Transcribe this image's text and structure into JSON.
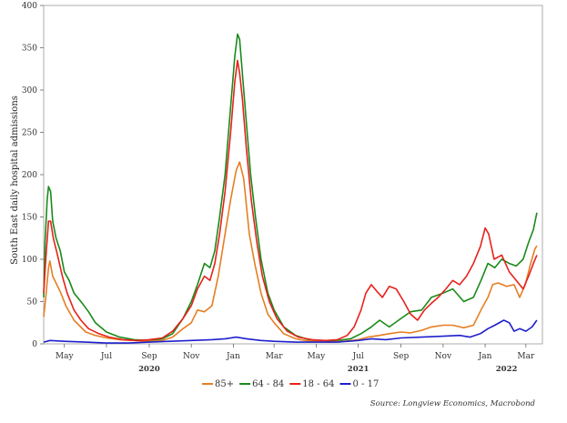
{
  "chart_data": {
    "type": "line",
    "title": "",
    "ylabel": "South East daily hospital admissions",
    "xlabel": "",
    "ylim": [
      0,
      400
    ],
    "xlim": [
      "2020-04-01",
      "2022-03-25"
    ],
    "yticks": [
      0,
      50,
      100,
      150,
      200,
      250,
      300,
      350,
      400
    ],
    "xticks": [
      {
        "date": "2020-05-01",
        "label": "May"
      },
      {
        "date": "2020-07-01",
        "label": "Jul"
      },
      {
        "date": "2020-09-01",
        "label": "Sep"
      },
      {
        "date": "2020-11-01",
        "label": "Nov"
      },
      {
        "date": "2021-01-01",
        "label": "Jan"
      },
      {
        "date": "2021-03-01",
        "label": "Mar"
      },
      {
        "date": "2021-05-01",
        "label": "May"
      },
      {
        "date": "2021-07-01",
        "label": "Jul"
      },
      {
        "date": "2021-09-01",
        "label": "Sep"
      },
      {
        "date": "2021-11-01",
        "label": "Nov"
      },
      {
        "date": "2022-01-01",
        "label": "Jan"
      },
      {
        "date": "2022-03-01",
        "label": "Mar"
      }
    ],
    "year_labels": [
      {
        "date": "2020-09-01",
        "label": "2020"
      },
      {
        "date": "2021-07-01",
        "label": "2021"
      },
      {
        "date": "2022-02-01",
        "label": "2022"
      }
    ],
    "grid": false,
    "legend": "bottom",
    "source": "Source: Longview Economics, Macrobond",
    "series": [
      {
        "name": "85+",
        "color": "#e67e22",
        "points": [
          [
            "2020-04-01",
            32
          ],
          [
            "2020-04-04",
            55
          ],
          [
            "2020-04-08",
            90
          ],
          [
            "2020-04-10",
            98
          ],
          [
            "2020-04-14",
            80
          ],
          [
            "2020-04-20",
            70
          ],
          [
            "2020-04-26",
            60
          ],
          [
            "2020-05-03",
            45
          ],
          [
            "2020-05-15",
            28
          ],
          [
            "2020-06-01",
            14
          ],
          [
            "2020-06-15",
            10
          ],
          [
            "2020-07-01",
            7
          ],
          [
            "2020-07-20",
            5
          ],
          [
            "2020-08-10",
            4
          ],
          [
            "2020-09-01",
            3
          ],
          [
            "2020-09-20",
            4
          ],
          [
            "2020-10-05",
            8
          ],
          [
            "2020-10-20",
            18
          ],
          [
            "2020-11-01",
            25
          ],
          [
            "2020-11-10",
            40
          ],
          [
            "2020-11-20",
            38
          ],
          [
            "2020-12-01",
            45
          ],
          [
            "2020-12-10",
            80
          ],
          [
            "2020-12-20",
            130
          ],
          [
            "2020-12-28",
            170
          ],
          [
            "2021-01-05",
            205
          ],
          [
            "2021-01-10",
            215
          ],
          [
            "2021-01-16",
            195
          ],
          [
            "2021-01-24",
            130
          ],
          [
            "2021-02-01",
            95
          ],
          [
            "2021-02-10",
            60
          ],
          [
            "2021-02-20",
            35
          ],
          [
            "2021-03-01",
            25
          ],
          [
            "2021-03-15",
            12
          ],
          [
            "2021-04-01",
            6
          ],
          [
            "2021-04-15",
            4
          ],
          [
            "2021-05-01",
            3
          ],
          [
            "2021-05-20",
            2
          ],
          [
            "2021-06-10",
            3
          ],
          [
            "2021-07-01",
            5
          ],
          [
            "2021-07-15",
            8
          ],
          [
            "2021-08-01",
            10
          ],
          [
            "2021-08-15",
            12
          ],
          [
            "2021-09-01",
            14
          ],
          [
            "2021-09-15",
            13
          ],
          [
            "2021-10-01",
            16
          ],
          [
            "2021-10-15",
            20
          ],
          [
            "2021-11-01",
            22
          ],
          [
            "2021-11-15",
            22
          ],
          [
            "2021-12-01",
            19
          ],
          [
            "2021-12-15",
            22
          ],
          [
            "2021-12-26",
            40
          ],
          [
            "2022-01-05",
            55
          ],
          [
            "2022-01-12",
            70
          ],
          [
            "2022-01-20",
            72
          ],
          [
            "2022-02-01",
            68
          ],
          [
            "2022-02-12",
            70
          ],
          [
            "2022-02-20",
            55
          ],
          [
            "2022-02-28",
            70
          ],
          [
            "2022-03-08",
            95
          ],
          [
            "2022-03-14",
            112
          ],
          [
            "2022-03-17",
            116
          ]
        ]
      },
      {
        "name": "64 - 84",
        "color": "#1a8a1a",
        "points": [
          [
            "2020-04-01",
            55
          ],
          [
            "2020-04-03",
            120
          ],
          [
            "2020-04-06",
            170
          ],
          [
            "2020-04-08",
            186
          ],
          [
            "2020-04-11",
            180
          ],
          [
            "2020-04-14",
            145
          ],
          [
            "2020-04-19",
            125
          ],
          [
            "2020-04-25",
            110
          ],
          [
            "2020-05-01",
            85
          ],
          [
            "2020-05-08",
            75
          ],
          [
            "2020-05-15",
            60
          ],
          [
            "2020-05-25",
            50
          ],
          [
            "2020-06-05",
            38
          ],
          [
            "2020-06-15",
            25
          ],
          [
            "2020-07-01",
            14
          ],
          [
            "2020-07-20",
            8
          ],
          [
            "2020-08-10",
            5
          ],
          [
            "2020-09-01",
            4
          ],
          [
            "2020-09-20",
            6
          ],
          [
            "2020-10-05",
            12
          ],
          [
            "2020-10-20",
            30
          ],
          [
            "2020-11-01",
            50
          ],
          [
            "2020-11-10",
            70
          ],
          [
            "2020-11-20",
            95
          ],
          [
            "2020-11-28",
            90
          ],
          [
            "2020-12-05",
            110
          ],
          [
            "2020-12-12",
            150
          ],
          [
            "2020-12-20",
            200
          ],
          [
            "2020-12-28",
            280
          ],
          [
            "2021-01-03",
            340
          ],
          [
            "2021-01-07",
            366
          ],
          [
            "2021-01-10",
            360
          ],
          [
            "2021-01-14",
            320
          ],
          [
            "2021-01-20",
            260
          ],
          [
            "2021-01-26",
            200
          ],
          [
            "2021-02-02",
            150
          ],
          [
            "2021-02-10",
            100
          ],
          [
            "2021-02-20",
            60
          ],
          [
            "2021-03-01",
            40
          ],
          [
            "2021-03-15",
            20
          ],
          [
            "2021-04-01",
            10
          ],
          [
            "2021-04-20",
            5
          ],
          [
            "2021-05-10",
            3
          ],
          [
            "2021-06-01",
            4
          ],
          [
            "2021-06-20",
            6
          ],
          [
            "2021-07-05",
            12
          ],
          [
            "2021-07-20",
            20
          ],
          [
            "2021-08-01",
            28
          ],
          [
            "2021-08-15",
            20
          ],
          [
            "2021-09-01",
            30
          ],
          [
            "2021-09-15",
            38
          ],
          [
            "2021-10-01",
            40
          ],
          [
            "2021-10-15",
            55
          ],
          [
            "2021-11-01",
            60
          ],
          [
            "2021-11-15",
            65
          ],
          [
            "2021-12-01",
            50
          ],
          [
            "2021-12-15",
            55
          ],
          [
            "2021-12-26",
            75
          ],
          [
            "2022-01-05",
            95
          ],
          [
            "2022-01-15",
            90
          ],
          [
            "2022-01-25",
            100
          ],
          [
            "2022-02-05",
            95
          ],
          [
            "2022-02-15",
            92
          ],
          [
            "2022-02-25",
            100
          ],
          [
            "2022-03-05",
            120
          ],
          [
            "2022-03-12",
            135
          ],
          [
            "2022-03-17",
            155
          ]
        ]
      },
      {
        "name": "18 - 64",
        "color": "#e8211b",
        "points": [
          [
            "2020-04-01",
            60
          ],
          [
            "2020-04-04",
            100
          ],
          [
            "2020-04-08",
            145
          ],
          [
            "2020-04-11",
            145
          ],
          [
            "2020-04-15",
            125
          ],
          [
            "2020-04-21",
            105
          ],
          [
            "2020-04-28",
            80
          ],
          [
            "2020-05-05",
            60
          ],
          [
            "2020-05-15",
            40
          ],
          [
            "2020-05-25",
            28
          ],
          [
            "2020-06-05",
            18
          ],
          [
            "2020-06-20",
            12
          ],
          [
            "2020-07-05",
            8
          ],
          [
            "2020-07-25",
            5
          ],
          [
            "2020-08-15",
            4
          ],
          [
            "2020-09-01",
            5
          ],
          [
            "2020-09-20",
            7
          ],
          [
            "2020-10-05",
            15
          ],
          [
            "2020-10-20",
            30
          ],
          [
            "2020-11-01",
            45
          ],
          [
            "2020-11-10",
            65
          ],
          [
            "2020-11-20",
            80
          ],
          [
            "2020-11-28",
            75
          ],
          [
            "2020-12-05",
            95
          ],
          [
            "2020-12-12",
            130
          ],
          [
            "2020-12-20",
            180
          ],
          [
            "2020-12-28",
            250
          ],
          [
            "2021-01-03",
            310
          ],
          [
            "2021-01-07",
            335
          ],
          [
            "2021-01-10",
            320
          ],
          [
            "2021-01-14",
            290
          ],
          [
            "2021-01-20",
            230
          ],
          [
            "2021-01-27",
            170
          ],
          [
            "2021-02-04",
            120
          ],
          [
            "2021-02-12",
            80
          ],
          [
            "2021-02-22",
            50
          ],
          [
            "2021-03-05",
            30
          ],
          [
            "2021-03-20",
            15
          ],
          [
            "2021-04-05",
            8
          ],
          [
            "2021-04-25",
            5
          ],
          [
            "2021-05-15",
            4
          ],
          [
            "2021-06-01",
            5
          ],
          [
            "2021-06-15",
            10
          ],
          [
            "2021-06-25",
            20
          ],
          [
            "2021-07-05",
            40
          ],
          [
            "2021-07-12",
            60
          ],
          [
            "2021-07-20",
            70
          ],
          [
            "2021-07-28",
            62
          ],
          [
            "2021-08-05",
            55
          ],
          [
            "2021-08-15",
            68
          ],
          [
            "2021-08-25",
            65
          ],
          [
            "2021-09-05",
            50
          ],
          [
            "2021-09-15",
            35
          ],
          [
            "2021-09-25",
            28
          ],
          [
            "2021-10-05",
            40
          ],
          [
            "2021-10-15",
            48
          ],
          [
            "2021-10-25",
            55
          ],
          [
            "2021-11-05",
            65
          ],
          [
            "2021-11-15",
            75
          ],
          [
            "2021-11-25",
            70
          ],
          [
            "2021-12-05",
            80
          ],
          [
            "2021-12-15",
            95
          ],
          [
            "2021-12-25",
            115
          ],
          [
            "2022-01-01",
            137
          ],
          [
            "2022-01-06",
            130
          ],
          [
            "2022-01-14",
            100
          ],
          [
            "2022-01-25",
            105
          ],
          [
            "2022-02-05",
            85
          ],
          [
            "2022-02-15",
            75
          ],
          [
            "2022-02-25",
            65
          ],
          [
            "2022-03-05",
            80
          ],
          [
            "2022-03-12",
            95
          ],
          [
            "2022-03-17",
            105
          ]
        ]
      },
      {
        "name": "0 - 17",
        "color": "#1f1fcc",
        "points": [
          [
            "2020-04-01",
            2
          ],
          [
            "2020-04-10",
            4
          ],
          [
            "2020-05-01",
            3
          ],
          [
            "2020-06-01",
            2
          ],
          [
            "2020-07-01",
            1
          ],
          [
            "2020-08-01",
            1
          ],
          [
            "2020-09-01",
            2
          ],
          [
            "2020-10-01",
            3
          ],
          [
            "2020-11-01",
            4
          ],
          [
            "2020-12-01",
            5
          ],
          [
            "2020-12-20",
            6
          ],
          [
            "2021-01-05",
            8
          ],
          [
            "2021-01-20",
            6
          ],
          [
            "2021-02-10",
            4
          ],
          [
            "2021-03-01",
            3
          ],
          [
            "2021-04-01",
            2
          ],
          [
            "2021-05-01",
            2
          ],
          [
            "2021-06-01",
            2
          ],
          [
            "2021-07-01",
            4
          ],
          [
            "2021-07-20",
            6
          ],
          [
            "2021-08-10",
            5
          ],
          [
            "2021-09-01",
            7
          ],
          [
            "2021-10-01",
            8
          ],
          [
            "2021-11-01",
            9
          ],
          [
            "2021-11-25",
            10
          ],
          [
            "2021-12-10",
            8
          ],
          [
            "2021-12-25",
            12
          ],
          [
            "2022-01-05",
            18
          ],
          [
            "2022-01-15",
            22
          ],
          [
            "2022-01-28",
            28
          ],
          [
            "2022-02-05",
            25
          ],
          [
            "2022-02-12",
            15
          ],
          [
            "2022-02-20",
            18
          ],
          [
            "2022-03-01",
            15
          ],
          [
            "2022-03-10",
            20
          ],
          [
            "2022-03-17",
            28
          ]
        ]
      }
    ]
  }
}
